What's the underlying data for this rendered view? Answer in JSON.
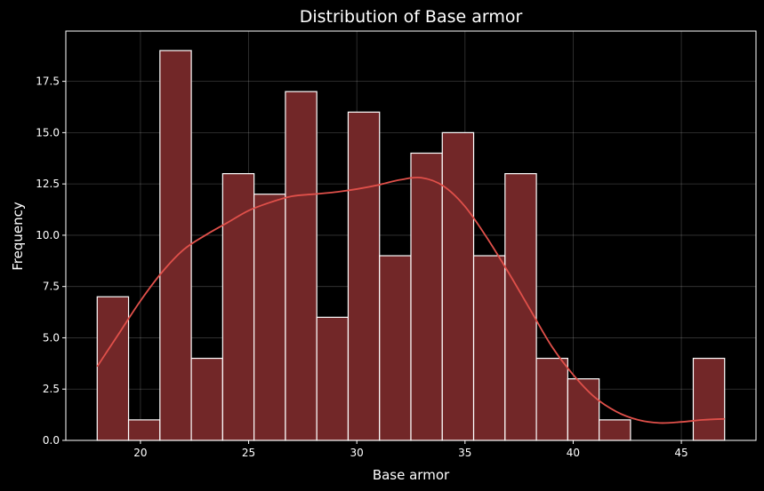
{
  "chart_data": {
    "type": "bar",
    "title": "Distribution of Base armor",
    "xlabel": "Base armor",
    "ylabel": "Frequency",
    "xlim": [
      16.55,
      48.45
    ],
    "ylim": [
      0,
      19.95
    ],
    "x_ticks": [
      20,
      25,
      30,
      35,
      40,
      45
    ],
    "y_ticks": [
      0.0,
      2.5,
      5.0,
      7.5,
      10.0,
      12.5,
      15.0,
      17.5
    ],
    "y_tick_labels": [
      "0.0",
      "2.5",
      "5.0",
      "7.5",
      "10.0",
      "12.5",
      "15.0",
      "17.5"
    ],
    "grid": true,
    "bin_edges": [
      18.0,
      19.45,
      20.9,
      22.35,
      23.8,
      25.25,
      26.7,
      28.15,
      29.6,
      31.05,
      32.5,
      33.95,
      35.4,
      36.85,
      38.3,
      39.75,
      41.2,
      42.65,
      44.1,
      45.55,
      47.0
    ],
    "values": [
      7,
      1,
      19,
      4,
      13,
      12,
      17,
      6,
      16,
      9,
      14,
      15,
      9,
      13,
      4,
      3,
      1,
      0,
      0,
      4
    ],
    "kde": {
      "x": [
        18,
        19,
        20,
        21,
        22,
        23,
        24,
        25,
        26,
        27,
        28,
        29,
        30,
        31,
        32,
        33,
        34,
        35,
        36,
        37,
        38,
        39,
        40,
        41,
        42,
        43,
        44,
        45,
        46,
        47
      ],
      "y": [
        3.6,
        5.2,
        6.8,
        8.2,
        9.3,
        10.0,
        10.6,
        11.2,
        11.6,
        11.9,
        12.0,
        12.1,
        12.25,
        12.45,
        12.7,
        12.8,
        12.4,
        11.4,
        9.9,
        8.2,
        6.4,
        4.6,
        3.2,
        2.1,
        1.4,
        1.0,
        0.85,
        0.9,
        1.0,
        1.05
      ]
    },
    "colors": {
      "bar_fill": "#722728",
      "bar_edge": "#ffffff",
      "kde_line": "#e0504a",
      "background": "#000000",
      "text": "#ffffff"
    }
  }
}
